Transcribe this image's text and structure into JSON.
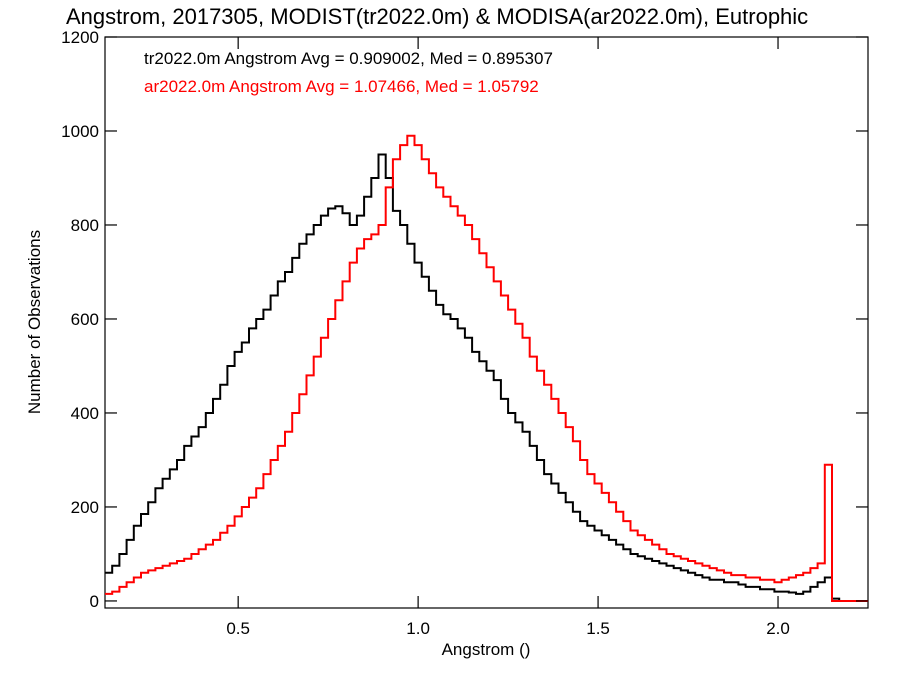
{
  "chart_data": {
    "type": "line",
    "step": true,
    "title": "Angstrom, 2017305, MODIST(tr2022.0m) & MODISA(ar2022.0m), Eutrophic",
    "xlabel": "Angstrom ()",
    "ylabel": "Number of Observations",
    "xlim": [
      0.13,
      2.25
    ],
    "ylim": [
      -15,
      1200
    ],
    "xticks": [
      0.5,
      1.0,
      1.5,
      2.0
    ],
    "xtick_labels": [
      "0.5",
      "1.0",
      "1.5",
      "2.0"
    ],
    "yticks": [
      0,
      200,
      400,
      600,
      800,
      1000,
      1200
    ],
    "ytick_labels": [
      "0",
      "200",
      "400",
      "600",
      "800",
      "1000",
      "1200"
    ],
    "grid": false,
    "legend": {
      "placement": "top-left",
      "entries": [
        "tr2022.0m Angstrom Avg = 0.909002, Med = 0.895307",
        "ar2022.0m Angstrom Avg = 1.07466, Med = 1.05792"
      ]
    },
    "series": [
      {
        "name": "tr2022.0m",
        "color": "#000000",
        "x": [
          0.13,
          0.15,
          0.17,
          0.19,
          0.21,
          0.23,
          0.25,
          0.27,
          0.29,
          0.31,
          0.33,
          0.35,
          0.37,
          0.39,
          0.41,
          0.43,
          0.45,
          0.47,
          0.49,
          0.51,
          0.53,
          0.55,
          0.57,
          0.59,
          0.61,
          0.63,
          0.65,
          0.67,
          0.69,
          0.71,
          0.73,
          0.75,
          0.77,
          0.79,
          0.81,
          0.83,
          0.85,
          0.87,
          0.89,
          0.91,
          0.93,
          0.95,
          0.97,
          0.99,
          1.01,
          1.03,
          1.05,
          1.07,
          1.09,
          1.11,
          1.13,
          1.15,
          1.17,
          1.19,
          1.21,
          1.23,
          1.25,
          1.27,
          1.29,
          1.31,
          1.33,
          1.35,
          1.37,
          1.39,
          1.41,
          1.43,
          1.45,
          1.47,
          1.49,
          1.51,
          1.53,
          1.55,
          1.57,
          1.59,
          1.61,
          1.63,
          1.65,
          1.67,
          1.69,
          1.71,
          1.73,
          1.75,
          1.77,
          1.79,
          1.81,
          1.83,
          1.85,
          1.87,
          1.89,
          1.91,
          1.93,
          1.95,
          1.97,
          1.99,
          2.01,
          2.03,
          2.05,
          2.07,
          2.09,
          2.11,
          2.13,
          2.15,
          2.17,
          2.19,
          2.21,
          2.23,
          2.25
        ],
        "y": [
          60,
          75,
          100,
          130,
          160,
          185,
          210,
          240,
          260,
          280,
          300,
          330,
          350,
          370,
          400,
          430,
          460,
          500,
          530,
          550,
          580,
          600,
          620,
          650,
          680,
          700,
          730,
          760,
          780,
          800,
          820,
          835,
          840,
          825,
          800,
          820,
          860,
          900,
          950,
          900,
          830,
          800,
          760,
          720,
          690,
          660,
          630,
          610,
          600,
          580,
          560,
          530,
          510,
          490,
          470,
          430,
          400,
          380,
          360,
          330,
          300,
          270,
          250,
          230,
          210,
          190,
          170,
          160,
          150,
          140,
          130,
          120,
          110,
          100,
          95,
          90,
          85,
          80,
          75,
          70,
          65,
          60,
          55,
          50,
          45,
          45,
          40,
          40,
          35,
          30,
          30,
          25,
          25,
          20,
          20,
          18,
          15,
          20,
          30,
          40,
          50,
          5,
          0,
          0,
          0,
          0,
          0
        ]
      },
      {
        "name": "ar2022.0m",
        "color": "#ff0000",
        "x": [
          0.13,
          0.15,
          0.17,
          0.19,
          0.21,
          0.23,
          0.25,
          0.27,
          0.29,
          0.31,
          0.33,
          0.35,
          0.37,
          0.39,
          0.41,
          0.43,
          0.45,
          0.47,
          0.49,
          0.51,
          0.53,
          0.55,
          0.57,
          0.59,
          0.61,
          0.63,
          0.65,
          0.67,
          0.69,
          0.71,
          0.73,
          0.75,
          0.77,
          0.79,
          0.81,
          0.83,
          0.85,
          0.87,
          0.89,
          0.91,
          0.93,
          0.95,
          0.97,
          0.99,
          1.01,
          1.03,
          1.05,
          1.07,
          1.09,
          1.11,
          1.13,
          1.15,
          1.17,
          1.19,
          1.21,
          1.23,
          1.25,
          1.27,
          1.29,
          1.31,
          1.33,
          1.35,
          1.37,
          1.39,
          1.41,
          1.43,
          1.45,
          1.47,
          1.49,
          1.51,
          1.53,
          1.55,
          1.57,
          1.59,
          1.61,
          1.63,
          1.65,
          1.67,
          1.69,
          1.71,
          1.73,
          1.75,
          1.77,
          1.79,
          1.81,
          1.83,
          1.85,
          1.87,
          1.89,
          1.91,
          1.93,
          1.95,
          1.97,
          1.99,
          2.01,
          2.03,
          2.05,
          2.07,
          2.09,
          2.11,
          2.13,
          2.15,
          2.17,
          2.19,
          2.21,
          2.23,
          2.25
        ],
        "y": [
          15,
          20,
          30,
          40,
          50,
          60,
          65,
          70,
          75,
          80,
          85,
          90,
          100,
          110,
          120,
          130,
          145,
          160,
          180,
          200,
          220,
          240,
          270,
          300,
          330,
          360,
          400,
          440,
          480,
          520,
          560,
          600,
          640,
          680,
          720,
          750,
          770,
          780,
          800,
          880,
          940,
          970,
          990,
          970,
          940,
          910,
          880,
          860,
          840,
          820,
          800,
          770,
          740,
          710,
          680,
          650,
          620,
          590,
          560,
          520,
          490,
          460,
          430,
          400,
          370,
          340,
          300,
          270,
          250,
          230,
          210,
          190,
          170,
          150,
          140,
          130,
          120,
          110,
          100,
          95,
          90,
          85,
          80,
          75,
          70,
          65,
          60,
          55,
          55,
          50,
          50,
          45,
          45,
          40,
          45,
          50,
          55,
          60,
          70,
          80,
          290,
          0,
          0,
          0,
          0,
          0,
          0
        ]
      }
    ]
  }
}
